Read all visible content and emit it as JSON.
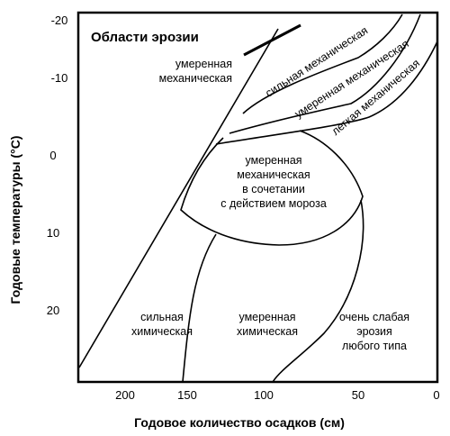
{
  "title": "Области эрозии",
  "axes": {
    "x_label": "Годовое количество осадков (см)",
    "y_label": "Годовые температуры (°С)",
    "x_ticks": [
      "200",
      "150",
      "100",
      "50",
      "0"
    ],
    "y_ticks": [
      "-20",
      "-10",
      "0",
      "10",
      "20"
    ],
    "x_range_cm": [
      225,
      0
    ],
    "y_range_c": [
      -21,
      29
    ]
  },
  "regions": {
    "moderate_mechanical_top": [
      "умеренная",
      "механическая"
    ],
    "strong_mechanical": "сильная механическая",
    "moderate_mechanical_band": "умеренная механическая",
    "light_mechanical": "легкая механическая",
    "frost": [
      "умеренная",
      "механическая",
      "в сочетании",
      "с действием мороза"
    ],
    "strong_chemical": [
      "сильная",
      "химическая"
    ],
    "moderate_chemical": [
      "умеренная",
      "химическая"
    ],
    "very_light": [
      "очень слабая",
      "эрозия",
      "любого типа"
    ]
  }
}
